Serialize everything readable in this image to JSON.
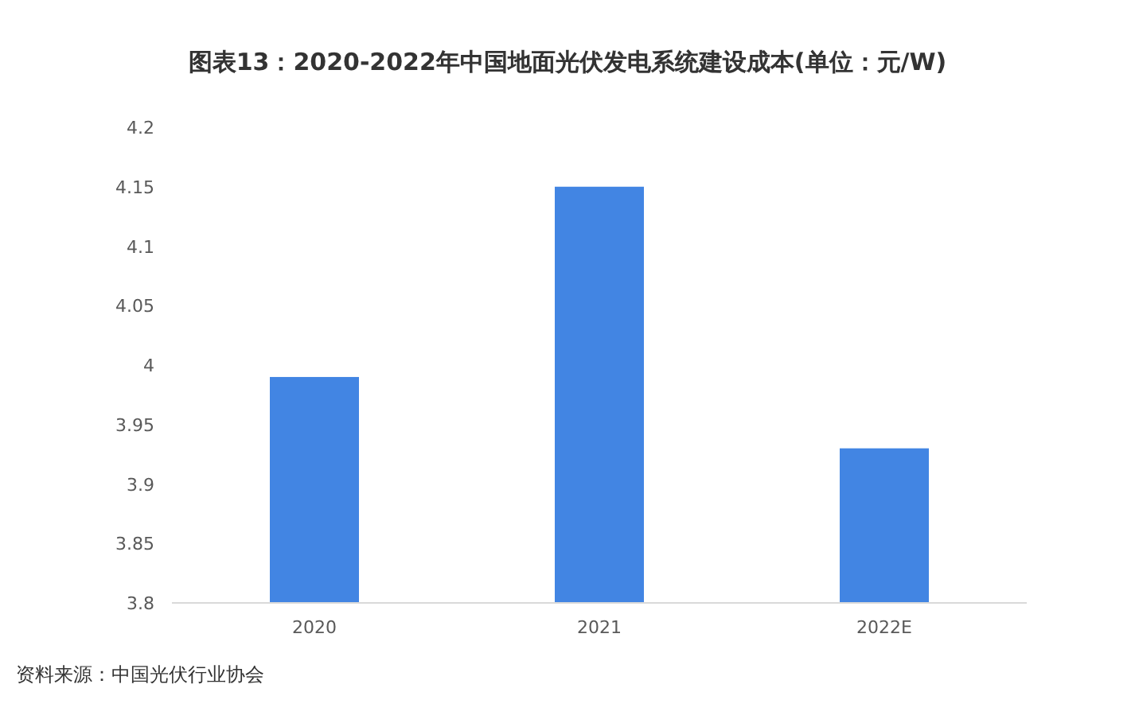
{
  "chart_data": {
    "type": "bar",
    "title": "图表13：2020-2022年中国地面光伏发电系统建设成本(单位：元/W)",
    "categories": [
      "2020",
      "2021",
      "2022E"
    ],
    "values": [
      3.99,
      4.15,
      3.93
    ],
    "color": "#4285e3",
    "ylim": [
      3.8,
      4.2
    ],
    "yticks": [
      3.8,
      3.85,
      3.9,
      3.95,
      4,
      4.05,
      4.1,
      4.15,
      4.2
    ],
    "grid": false,
    "annotations": [
      "资料来源：中国光伏行业协会"
    ]
  }
}
